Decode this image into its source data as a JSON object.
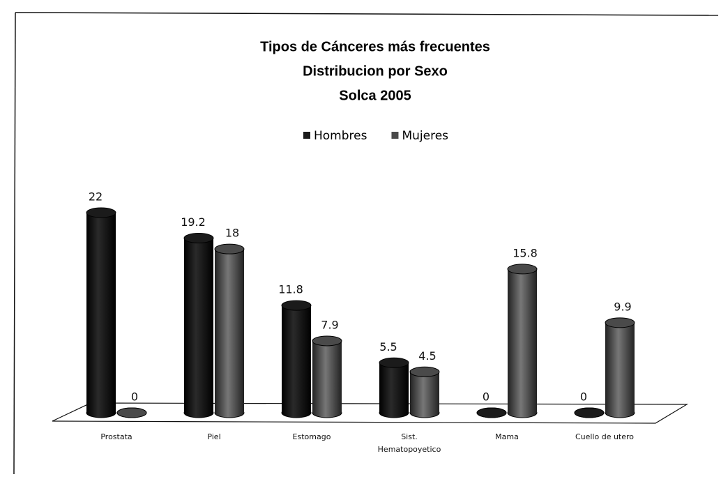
{
  "chart_data": {
    "type": "bar",
    "title": "Tipos de Cánceres más frecuentes",
    "subtitle": [
      "Distribucion por Sexo",
      "Solca 2005"
    ],
    "categories": [
      "Prostata",
      "Piel",
      "Estomago",
      "Sist. Hematopoyetico",
      "Mama",
      "Cuello de utero"
    ],
    "series": [
      {
        "name": "Hombres",
        "color": "#1b1b1b",
        "values": [
          22,
          19.2,
          11.8,
          5.5,
          0,
          0
        ]
      },
      {
        "name": "Mujeres",
        "color": "#4a4a4a",
        "values": [
          0,
          18,
          7.9,
          4.5,
          15.8,
          9.9
        ]
      }
    ],
    "legend": "top"
  }
}
